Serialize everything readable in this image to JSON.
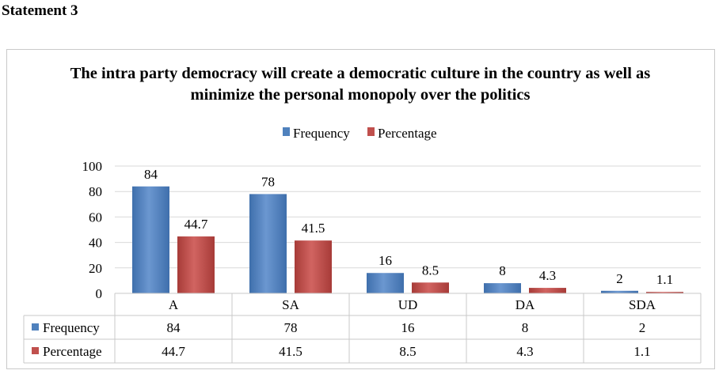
{
  "header": {
    "statement": "Statement 3"
  },
  "chart_data": {
    "type": "bar",
    "title": "The intra party democracy will create a democratic culture in the country as well as minimize the personal monopoly over the politics",
    "categories": [
      "A",
      "SA",
      "UD",
      "DA",
      "SDA"
    ],
    "series": [
      {
        "name": "Frequency",
        "values": [
          84,
          78,
          16,
          8,
          2
        ],
        "labels": [
          "84",
          "78",
          "16",
          "8",
          "2"
        ],
        "color": "#4f81bd"
      },
      {
        "name": "Percentage",
        "values": [
          44.7,
          41.5,
          8.5,
          4.3,
          1.1
        ],
        "labels": [
          "44.7",
          "41.5",
          "8.5",
          "4.3",
          "1.1"
        ],
        "color": "#c0504d"
      }
    ],
    "ylim": [
      0,
      100
    ],
    "yticks": [
      "0",
      "20",
      "40",
      "60",
      "80",
      "100"
    ],
    "grid": true,
    "legend": "top",
    "data_table": true
  }
}
